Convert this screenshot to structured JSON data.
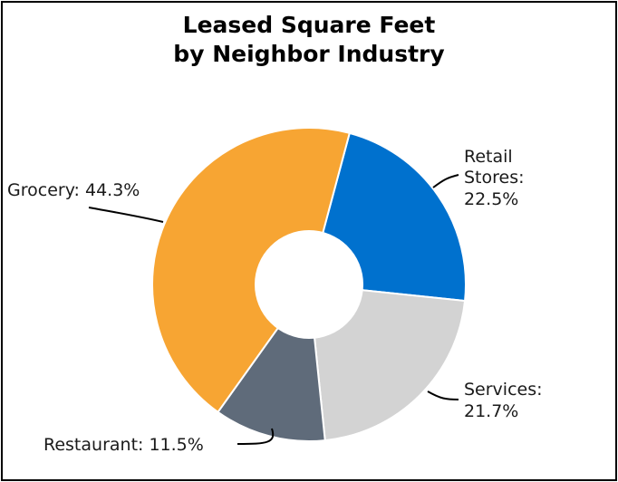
{
  "chart_data": {
    "type": "donut",
    "title_line1": "Leased Square Feet",
    "title_line2": "by Neighbor Industry",
    "unit": "%",
    "slices": [
      {
        "name": "Retail Stores",
        "value": 22.5,
        "color": "#0071ce",
        "label_lines": [
          "Retail",
          "Stores:",
          "22.5%"
        ]
      },
      {
        "name": "Services",
        "value": 21.7,
        "color": "#d3d3d3",
        "label_lines": [
          "Services:",
          "21.7%"
        ]
      },
      {
        "name": "Restaurant",
        "value": 11.5,
        "color": "#5f6b7a",
        "label_lines": [
          "Restaurant: 11.5%"
        ]
      },
      {
        "name": "Grocery",
        "value": 44.3,
        "color": "#f7a533",
        "label_lines": [
          "Grocery: 44.3%"
        ]
      }
    ]
  }
}
